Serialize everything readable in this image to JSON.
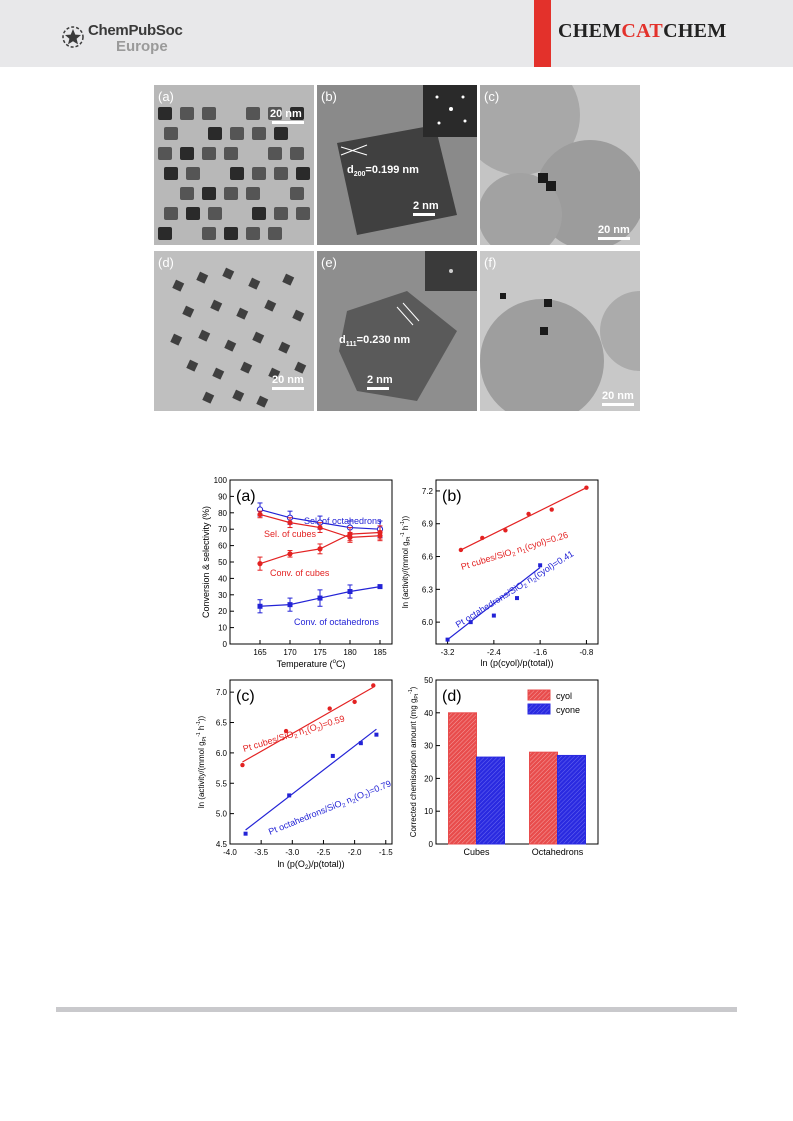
{
  "header": {
    "publisher_line1": "ChemPubSoc",
    "publisher_line2": "Europe",
    "journal_part1": "CHEM",
    "journal_part2": "CAT",
    "journal_part3": "CHEM"
  },
  "tem_panels": [
    {
      "label": "(a)",
      "scale": "20 nm"
    },
    {
      "label": "(b)",
      "scale": "2 nm",
      "annotation_main": "d",
      "annotation_sub": "200",
      "annotation_value": "=0.199 nm"
    },
    {
      "label": "(c)",
      "scale": "20 nm"
    },
    {
      "label": "(d)",
      "scale": "20 nm"
    },
    {
      "label": "(e)",
      "scale": "2 nm",
      "annotation_main": "d",
      "annotation_sub": "111",
      "annotation_value": "=0.230 nm"
    },
    {
      "label": "(f)",
      "scale": "20 nm"
    }
  ],
  "chart_data": [
    {
      "type": "line",
      "panel": "(a)",
      "xlabel_pre": "Temperature (",
      "xlabel_sup": "o",
      "xlabel_post": "C)",
      "ylabel": "Conversion & selectivity (%)",
      "xlim": [
        160,
        187
      ],
      "ylim": [
        0,
        100
      ],
      "x_ticks": [
        165,
        170,
        175,
        180,
        185
      ],
      "y_ticks": [
        0,
        10,
        20,
        30,
        40,
        50,
        60,
        70,
        80,
        90,
        100
      ],
      "x": [
        165,
        170,
        175,
        180,
        185
      ],
      "series": [
        {
          "name": "Sel. of octahedrons",
          "color": "#2323d6",
          "marker": "open-circle",
          "values": [
            82,
            77,
            74,
            71,
            70
          ],
          "errors": [
            4,
            4,
            4,
            4,
            5
          ]
        },
        {
          "name": "Sel. of cubes",
          "color": "#e32222",
          "marker": "circle",
          "values": [
            79,
            74,
            71,
            65,
            66
          ],
          "errors": [
            2,
            3,
            3,
            3,
            3
          ]
        },
        {
          "name": "Conv. of cubes",
          "color": "#e32222",
          "marker": "circle",
          "values": [
            49,
            55,
            58,
            67,
            68
          ],
          "errors": [
            4,
            2,
            3,
            4,
            4
          ]
        },
        {
          "name": "Conv. of octahedrons",
          "color": "#2323d6",
          "marker": "square",
          "values": [
            23,
            24,
            28,
            32,
            35
          ],
          "errors": [
            4,
            4,
            5,
            4,
            1
          ]
        }
      ]
    },
    {
      "type": "scatter",
      "panel": "(b)",
      "xlabel": "ln (p(cyol)/p(total))",
      "ylabel_pre": "ln (activity/(mmol g",
      "ylabel_sub": "Pt",
      "ylabel_sup": "-1",
      "ylabel_mid": " h",
      "ylabel_sup2": "-1",
      "ylabel_post": "))",
      "xlim": [
        -3.4,
        -0.6
      ],
      "ylim": [
        5.8,
        7.3
      ],
      "x_ticks": [
        -3.2,
        -2.4,
        -1.6,
        -0.8
      ],
      "y_ticks": [
        6.0,
        6.3,
        6.6,
        6.9,
        7.2
      ],
      "series": [
        {
          "name_pre": "Pt cubes/SiO",
          "name_sub": "2",
          "name_fit": "n",
          "name_fit_sub": "1",
          "name_post": "(cyol)=0.26",
          "color": "#e32222",
          "x": [
            -2.97,
            -2.6,
            -2.2,
            -1.8,
            -1.4,
            -0.8
          ],
          "y": [
            6.66,
            6.77,
            6.84,
            6.99,
            7.03,
            7.23
          ],
          "fit": [
            [
              -2.97,
              6.66
            ],
            [
              -0.8,
              7.23
            ]
          ]
        },
        {
          "name_pre": "Pt octahedrons/SiO",
          "name_sub": "2",
          "name_fit": "n",
          "name_fit_sub": "2",
          "name_post": "(cyol)=0.41",
          "color": "#2323d6",
          "x": [
            -3.2,
            -2.8,
            -2.4,
            -2.0,
            -1.6
          ],
          "y": [
            5.84,
            6.0,
            6.06,
            6.22,
            6.52
          ],
          "fit": [
            [
              -3.2,
              5.84
            ],
            [
              -1.6,
              6.5
            ]
          ]
        }
      ]
    },
    {
      "type": "scatter",
      "panel": "(c)",
      "xlabel_pre": "ln (p(O",
      "xlabel_sub": "2",
      "xlabel_post": ")/p(total))",
      "ylabel_pre": "ln (activity/(mmol g",
      "ylabel_sub": "Pt",
      "ylabel_sup": "-1",
      "ylabel_mid": " h",
      "ylabel_sup2": "-1",
      "ylabel_post": "))",
      "xlim": [
        -4.0,
        -1.4
      ],
      "ylim": [
        4.5,
        7.2
      ],
      "x_ticks": [
        -4.0,
        -3.5,
        -3.0,
        -2.5,
        -2.0,
        -1.5
      ],
      "x_tick_labels": [
        "-4.0",
        "-3.5",
        "-3.0",
        "-2.5",
        "-2.0",
        "-1.5"
      ],
      "y_ticks": [
        4.5,
        5.0,
        5.5,
        6.0,
        6.5,
        7.0
      ],
      "y_tick_labels": [
        "4.5",
        "5.0",
        "5.5",
        "6.0",
        "6.5",
        "7.0"
      ],
      "series": [
        {
          "name_pre": "Pt cubes/SiO",
          "name_sub": "2",
          "name_fit": "n",
          "name_fit_sub": "1",
          "name_mid": "(O",
          "name_mid_sub": "2",
          "name_post": ")=0.59",
          "color": "#e32222",
          "x": [
            -3.8,
            -3.1,
            -2.4,
            -2.0,
            -1.7
          ],
          "y": [
            5.8,
            6.36,
            6.73,
            6.84,
            7.11
          ],
          "fit": [
            [
              -3.8,
              5.85
            ],
            [
              -1.7,
              7.08
            ]
          ]
        },
        {
          "name_pre": "Pt octahedrons/SiO",
          "name_sub": "2",
          "name_fit": "n",
          "name_fit_sub": "2",
          "name_mid": "(O",
          "name_mid_sub": "2",
          "name_post": ")=0.79",
          "color": "#2323d6",
          "x": [
            -3.75,
            -3.05,
            -2.35,
            -1.9,
            -1.65
          ],
          "y": [
            4.67,
            5.3,
            5.95,
            6.16,
            6.3
          ],
          "fit": [
            [
              -3.75,
              4.73
            ],
            [
              -1.65,
              6.39
            ]
          ]
        }
      ]
    },
    {
      "type": "bar",
      "panel": "(d)",
      "ylabel_pre": "Corrected chemisorption amount (mg g",
      "ylabel_sub": "Pt",
      "ylabel_sup": "-1",
      "ylabel_post": ")",
      "categories": [
        "Cubes",
        "Octahedrons"
      ],
      "ylim": [
        0,
        50
      ],
      "y_ticks": [
        0,
        10,
        20,
        30,
        40,
        50
      ],
      "series": [
        {
          "name": "cyol",
          "color": "#e84c4c",
          "values": [
            40,
            28
          ]
        },
        {
          "name": "cyone",
          "color": "#2a2ae0",
          "values": [
            26.5,
            27
          ]
        }
      ]
    }
  ]
}
